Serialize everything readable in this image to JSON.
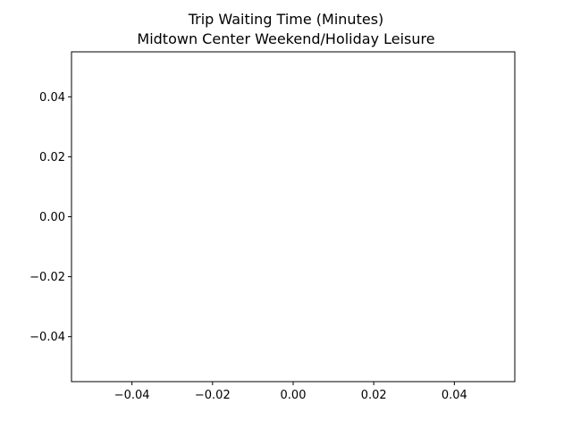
{
  "chart_data": {
    "type": "line",
    "title": "Trip Waiting Time (Minutes)",
    "subtitle": "Midtown Center Weekend/Holiday Leisure",
    "xlabel": "",
    "ylabel": "",
    "xlim": [
      -0.055,
      0.055
    ],
    "ylim": [
      -0.055,
      0.055
    ],
    "x_ticks": [
      -0.04,
      -0.02,
      0.0,
      0.02,
      0.04
    ],
    "y_ticks": [
      -0.04,
      -0.02,
      0.0,
      0.02,
      0.04
    ],
    "x_tick_labels": [
      "−0.04",
      "−0.02",
      "0.00",
      "0.02",
      "0.04"
    ],
    "y_tick_labels": [
      "−0.04",
      "−0.02",
      "0.00",
      "0.02",
      "0.04"
    ],
    "series": [],
    "grid": false,
    "colors": {
      "frame": "#000000",
      "background": "#ffffff"
    }
  }
}
